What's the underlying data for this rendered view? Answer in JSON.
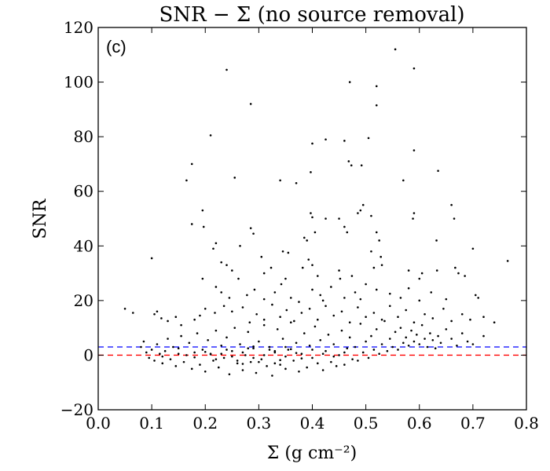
{
  "chart_data": {
    "type": "scatter",
    "title": "SNR − Σ (no source removal)",
    "panel_label": "(c)",
    "xlabel": "Σ (g cm⁻²)",
    "ylabel": "SNR",
    "xlim": [
      0.0,
      0.8
    ],
    "ylim": [
      -20,
      120
    ],
    "x_ticks": [
      "0.0",
      "0.1",
      "0.2",
      "0.3",
      "0.4",
      "0.5",
      "0.6",
      "0.7",
      "0.8"
    ],
    "y_ticks": [
      "−20",
      "0",
      "20",
      "40",
      "60",
      "80",
      "100",
      "120"
    ],
    "grid": false,
    "legend": "none",
    "marker_color": "#000000",
    "reference_lines": [
      {
        "y": 3,
        "style": "dashed",
        "color": "#0000ff"
      },
      {
        "y": 0,
        "style": "dashed",
        "color": "#ff0000"
      }
    ],
    "series": [
      {
        "points": [
          [
            0.24,
            104.5
          ],
          [
            0.285,
            92.0
          ],
          [
            0.555,
            112.0
          ],
          [
            0.59,
            105.0
          ],
          [
            0.52,
            98.5
          ],
          [
            0.47,
            100.0
          ],
          [
            0.52,
            91.5
          ],
          [
            0.21,
            80.5
          ],
          [
            0.4,
            77.5
          ],
          [
            0.425,
            79.0
          ],
          [
            0.46,
            78.5
          ],
          [
            0.505,
            79.5
          ],
          [
            0.59,
            75.0
          ],
          [
            0.175,
            70.0
          ],
          [
            0.165,
            64.0
          ],
          [
            0.255,
            65.0
          ],
          [
            0.34,
            64.0
          ],
          [
            0.37,
            63.0
          ],
          [
            0.397,
            67.0
          ],
          [
            0.468,
            71.0
          ],
          [
            0.473,
            69.5
          ],
          [
            0.492,
            69.5
          ],
          [
            0.57,
            64.0
          ],
          [
            0.635,
            67.5
          ],
          [
            0.195,
            53.0
          ],
          [
            0.175,
            48.0
          ],
          [
            0.197,
            47.0
          ],
          [
            0.285,
            46.5
          ],
          [
            0.29,
            44.5
          ],
          [
            0.397,
            52.0
          ],
          [
            0.4,
            50.5
          ],
          [
            0.425,
            50.0
          ],
          [
            0.45,
            50.0
          ],
          [
            0.49,
            53.0
          ],
          [
            0.495,
            55.0
          ],
          [
            0.485,
            52.0
          ],
          [
            0.51,
            51.0
          ],
          [
            0.59,
            52.0
          ],
          [
            0.588,
            50.0
          ],
          [
            0.66,
            55.0
          ],
          [
            0.665,
            50.0
          ],
          [
            0.22,
            41.0
          ],
          [
            0.215,
            39.0
          ],
          [
            0.265,
            40.0
          ],
          [
            0.305,
            36.0
          ],
          [
            0.345,
            38.0
          ],
          [
            0.355,
            37.5
          ],
          [
            0.385,
            43.0
          ],
          [
            0.39,
            42.0
          ],
          [
            0.405,
            45.0
          ],
          [
            0.46,
            47.0
          ],
          [
            0.465,
            45.0
          ],
          [
            0.52,
            45.0
          ],
          [
            0.525,
            42.0
          ],
          [
            0.51,
            38.0
          ],
          [
            0.528,
            36.0
          ],
          [
            0.632,
            42.0
          ],
          [
            0.7,
            39.0
          ],
          [
            0.765,
            34.5
          ],
          [
            0.1,
            35.5
          ],
          [
            0.23,
            34.0
          ],
          [
            0.24,
            33.0
          ],
          [
            0.25,
            31.0
          ],
          [
            0.262,
            28.0
          ],
          [
            0.31,
            30.0
          ],
          [
            0.323,
            32.0
          ],
          [
            0.35,
            28.0
          ],
          [
            0.382,
            32.0
          ],
          [
            0.393,
            35.0
          ],
          [
            0.4,
            33.0
          ],
          [
            0.41,
            29.0
          ],
          [
            0.45,
            31.0
          ],
          [
            0.452,
            28.0
          ],
          [
            0.474,
            29.0
          ],
          [
            0.515,
            32.0
          ],
          [
            0.53,
            33.0
          ],
          [
            0.58,
            31.0
          ],
          [
            0.6,
            28.0
          ],
          [
            0.605,
            30.0
          ],
          [
            0.633,
            31.0
          ],
          [
            0.667,
            32.0
          ],
          [
            0.673,
            30.0
          ],
          [
            0.685,
            29.0
          ],
          [
            0.195,
            28.0
          ],
          [
            0.22,
            25.0
          ],
          [
            0.23,
            23.0
          ],
          [
            0.245,
            21.0
          ],
          [
            0.278,
            22.0
          ],
          [
            0.292,
            24.0
          ],
          [
            0.31,
            20.5
          ],
          [
            0.33,
            23.0
          ],
          [
            0.342,
            26.0
          ],
          [
            0.36,
            21.0
          ],
          [
            0.375,
            19.5
          ],
          [
            0.4,
            24.0
          ],
          [
            0.415,
            22.0
          ],
          [
            0.42,
            20.0
          ],
          [
            0.435,
            25.0
          ],
          [
            0.46,
            21.0
          ],
          [
            0.48,
            23.0
          ],
          [
            0.49,
            20.5
          ],
          [
            0.5,
            26.0
          ],
          [
            0.52,
            24.0
          ],
          [
            0.545,
            22.5
          ],
          [
            0.565,
            21.0
          ],
          [
            0.58,
            24.5
          ],
          [
            0.6,
            20.0
          ],
          [
            0.622,
            23.0
          ],
          [
            0.65,
            20.5
          ],
          [
            0.705,
            22.0
          ],
          [
            0.71,
            21.0
          ],
          [
            0.05,
            17.0
          ],
          [
            0.065,
            15.5
          ],
          [
            0.105,
            15.0
          ],
          [
            0.11,
            16.0
          ],
          [
            0.118,
            13.5
          ],
          [
            0.13,
            12.5
          ],
          [
            0.145,
            14.0
          ],
          [
            0.155,
            11.0
          ],
          [
            0.18,
            13.0
          ],
          [
            0.19,
            14.5
          ],
          [
            0.2,
            17.0
          ],
          [
            0.218,
            15.5
          ],
          [
            0.235,
            18.0
          ],
          [
            0.25,
            16.0
          ],
          [
            0.27,
            17.5
          ],
          [
            0.283,
            12.0
          ],
          [
            0.296,
            15.0
          ],
          [
            0.31,
            13.0
          ],
          [
            0.325,
            18.5
          ],
          [
            0.34,
            14.0
          ],
          [
            0.352,
            16.5
          ],
          [
            0.366,
            12.5
          ],
          [
            0.38,
            15.5
          ],
          [
            0.395,
            17.0
          ],
          [
            0.41,
            13.0
          ],
          [
            0.425,
            18.0
          ],
          [
            0.44,
            14.5
          ],
          [
            0.455,
            16.0
          ],
          [
            0.47,
            12.0
          ],
          [
            0.485,
            17.5
          ],
          [
            0.5,
            14.0
          ],
          [
            0.515,
            15.5
          ],
          [
            0.53,
            13.0
          ],
          [
            0.545,
            18.0
          ],
          [
            0.56,
            14.0
          ],
          [
            0.575,
            16.5
          ],
          [
            0.59,
            12.0
          ],
          [
            0.61,
            15.0
          ],
          [
            0.625,
            13.5
          ],
          [
            0.645,
            17.0
          ],
          [
            0.66,
            12.5
          ],
          [
            0.68,
            15.0
          ],
          [
            0.695,
            13.0
          ],
          [
            0.72,
            14.0
          ],
          [
            0.74,
            12.0
          ],
          [
            0.08,
            3.0
          ],
          [
            0.085,
            5.0
          ],
          [
            0.09,
            1.0
          ],
          [
            0.095,
            -1.0
          ],
          [
            0.1,
            2.0
          ],
          [
            0.105,
            -2.0
          ],
          [
            0.11,
            4.0
          ],
          [
            0.115,
            0.5
          ],
          [
            0.12,
            -3.0
          ],
          [
            0.125,
            1.5
          ],
          [
            0.13,
            6.0
          ],
          [
            0.135,
            -1.5
          ],
          [
            0.14,
            3.0
          ],
          [
            0.145,
            -4.0
          ],
          [
            0.15,
            2.5
          ],
          [
            0.155,
            7.0
          ],
          [
            0.16,
            -2.5
          ],
          [
            0.165,
            0.0
          ],
          [
            0.17,
            4.5
          ],
          [
            0.175,
            -5.0
          ],
          [
            0.18,
            1.0
          ],
          [
            0.185,
            8.0
          ],
          [
            0.19,
            -3.5
          ],
          [
            0.195,
            2.0
          ],
          [
            0.2,
            -6.0
          ],
          [
            0.205,
            5.5
          ],
          [
            0.21,
            0.5
          ],
          [
            0.215,
            -2.0
          ],
          [
            0.22,
            9.0
          ],
          [
            0.225,
            -4.5
          ],
          [
            0.23,
            3.5
          ],
          [
            0.235,
            -1.0
          ],
          [
            0.24,
            6.5
          ],
          [
            0.245,
            -7.0
          ],
          [
            0.25,
            1.5
          ],
          [
            0.255,
            10.0
          ],
          [
            0.26,
            -3.0
          ],
          [
            0.265,
            4.0
          ],
          [
            0.27,
            -5.5
          ],
          [
            0.275,
            0.0
          ],
          [
            0.28,
            8.5
          ],
          [
            0.285,
            -2.5
          ],
          [
            0.29,
            2.5
          ],
          [
            0.295,
            -6.5
          ],
          [
            0.3,
            5.0
          ],
          [
            0.305,
            -1.5
          ],
          [
            0.31,
            11.0
          ],
          [
            0.315,
            -4.0
          ],
          [
            0.32,
            3.0
          ],
          [
            0.325,
            -7.5
          ],
          [
            0.33,
            1.0
          ],
          [
            0.335,
            9.5
          ],
          [
            0.34,
            -3.5
          ],
          [
            0.345,
            6.0
          ],
          [
            0.35,
            -5.0
          ],
          [
            0.355,
            2.0
          ],
          [
            0.36,
            12.0
          ],
          [
            0.365,
            -2.0
          ],
          [
            0.37,
            4.5
          ],
          [
            0.375,
            -6.0
          ],
          [
            0.38,
            0.5
          ],
          [
            0.385,
            8.0
          ],
          [
            0.39,
            -4.5
          ],
          [
            0.395,
            3.5
          ],
          [
            0.4,
            -1.0
          ],
          [
            0.405,
            10.5
          ],
          [
            0.41,
            -3.0
          ],
          [
            0.415,
            5.5
          ],
          [
            0.42,
            -5.5
          ],
          [
            0.425,
            1.5
          ],
          [
            0.43,
            7.5
          ],
          [
            0.435,
            -2.5
          ],
          [
            0.44,
            4.0
          ],
          [
            0.445,
            -4.0
          ],
          [
            0.45,
            0.0
          ],
          [
            0.455,
            9.0
          ],
          [
            0.46,
            -3.5
          ],
          [
            0.465,
            2.5
          ],
          [
            0.47,
            6.5
          ],
          [
            0.475,
            -1.5
          ],
          [
            0.48,
            3.0
          ],
          [
            0.485,
            -2.0
          ],
          [
            0.49,
            11.5
          ],
          [
            0.495,
            1.0
          ],
          [
            0.5,
            5.0
          ],
          [
            0.505,
            -1.0
          ],
          [
            0.51,
            7.0
          ],
          [
            0.515,
            2.0
          ],
          [
            0.52,
            9.5
          ],
          [
            0.525,
            0.5
          ],
          [
            0.53,
            4.0
          ],
          [
            0.535,
            12.5
          ],
          [
            0.54,
            1.5
          ],
          [
            0.545,
            6.0
          ],
          [
            0.55,
            3.0
          ],
          [
            0.555,
            8.5
          ],
          [
            0.56,
            2.0
          ],
          [
            0.565,
            10.0
          ],
          [
            0.57,
            4.5
          ],
          [
            0.575,
            6.5
          ],
          [
            0.58,
            3.5
          ],
          [
            0.585,
            9.0
          ],
          [
            0.59,
            5.0
          ],
          [
            0.595,
            7.5
          ],
          [
            0.6,
            4.0
          ],
          [
            0.605,
            11.0
          ],
          [
            0.61,
            6.0
          ],
          [
            0.615,
            3.0
          ],
          [
            0.62,
            8.0
          ],
          [
            0.625,
            5.5
          ],
          [
            0.63,
            2.5
          ],
          [
            0.635,
            7.0
          ],
          [
            0.64,
            4.5
          ],
          [
            0.65,
            9.5
          ],
          [
            0.66,
            6.0
          ],
          [
            0.67,
            3.5
          ],
          [
            0.68,
            8.0
          ],
          [
            0.69,
            5.0
          ],
          [
            0.7,
            4.0
          ],
          [
            0.72,
            7.0
          ],
          [
            0.23,
            0.5
          ],
          [
            0.25,
            -0.5
          ],
          [
            0.27,
            1.0
          ],
          [
            0.29,
            -1.0
          ],
          [
            0.31,
            0.0
          ],
          [
            0.33,
            1.5
          ],
          [
            0.35,
            -0.5
          ],
          [
            0.37,
            0.8
          ],
          [
            0.24,
            2.0
          ],
          [
            0.26,
            -2.0
          ],
          [
            0.28,
            2.5
          ],
          [
            0.3,
            -2.5
          ],
          [
            0.32,
            2.0
          ],
          [
            0.34,
            -1.8
          ],
          [
            0.36,
            2.2
          ],
          [
            0.38,
            -1.2
          ],
          [
            0.22,
            -1.5
          ],
          [
            0.2,
            1.2
          ],
          [
            0.18,
            -0.8
          ],
          [
            0.21,
            0.3
          ],
          [
            0.33,
            -3.0
          ],
          [
            0.29,
            3.2
          ],
          [
            0.35,
            3.0
          ],
          [
            0.27,
            -3.2
          ],
          [
            0.42,
            0.5
          ],
          [
            0.44,
            -0.5
          ],
          [
            0.46,
            1.0
          ],
          [
            0.15,
            0.5
          ],
          [
            0.12,
            -0.5
          ],
          [
            0.4,
            2.0
          ]
        ]
      }
    ]
  }
}
